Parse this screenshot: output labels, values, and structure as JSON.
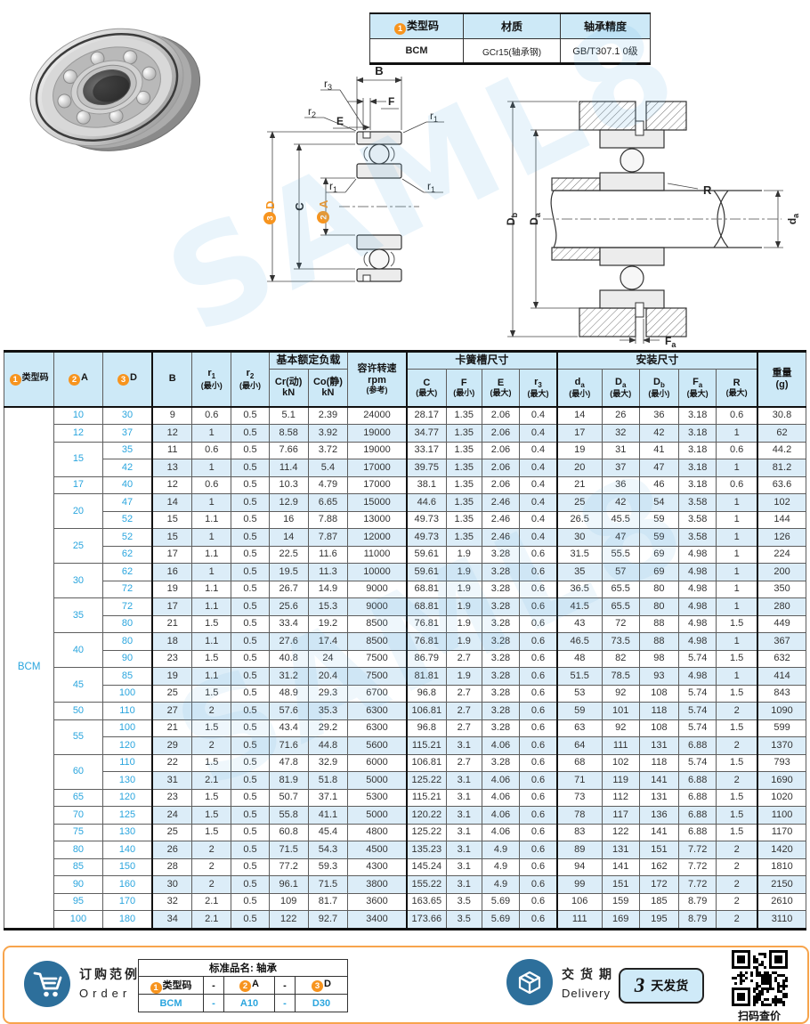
{
  "watermark": "SAML8",
  "info_table": {
    "h1_badge": "1",
    "h1": "类型码",
    "h2": "材质",
    "h3": "轴承精度",
    "v1": "BCM",
    "v2": "GCr15(轴承钢)",
    "v3": "GB/T307.1 0级"
  },
  "diagrams": {
    "b": "B",
    "f": "F",
    "e": "E",
    "r1m": "r",
    "r1s": "1",
    "r2m": "r",
    "r2s": "2",
    "r3m": "r",
    "r3s": "3",
    "d_badge": "3",
    "d": "D",
    "c": "C",
    "a_badge": "2",
    "a": "A",
    "dbm": "D",
    "dbs": "b",
    "dam": "D",
    "das": "a",
    "sham": "d",
    "shas": "a",
    "r": "R",
    "fam": "F",
    "fas": "a"
  },
  "main_table": {
    "type_code": "BCM",
    "headers": {
      "type_badge": "1",
      "type_label": "类型码",
      "a_badge": "2",
      "a_label": "A",
      "d_badge": "3",
      "d_label": "D",
      "b_label": "B",
      "r1": {
        "main": "r",
        "sub": "1",
        "note": "(最小)"
      },
      "r2": {
        "main": "r",
        "sub": "2",
        "note": "(最小)"
      },
      "load_group": "基本额定负载",
      "cr": {
        "main": "Cr(动)",
        "note": "kN"
      },
      "co": {
        "main": "Co(静)",
        "note": "kN"
      },
      "speed": {
        "l1": "容许转速",
        "l2": "rpm",
        "l3": "(参考)"
      },
      "snap_group": "卡簧槽尺寸",
      "c": {
        "main": "C",
        "note": "(最大)"
      },
      "f": {
        "main": "F",
        "note": "(最小)"
      },
      "e": {
        "main": "E",
        "note": "(最大)"
      },
      "r3": {
        "main": "r",
        "sub": "3",
        "note": "(最大)"
      },
      "mount_group": "安装尺寸",
      "da": {
        "main": "d",
        "sub": "a",
        "note": "(最小)"
      },
      "Da": {
        "main": "D",
        "sub": "a",
        "note": "(最大)"
      },
      "Db": {
        "main": "D",
        "sub": "b",
        "note": "(最小)"
      },
      "Fa": {
        "main": "F",
        "sub": "a",
        "note": "(最大)"
      },
      "r": {
        "main": "R",
        "note": "(最大)"
      },
      "weight": {
        "l1": "重量",
        "l2": "(g)"
      }
    },
    "rows": [
      [
        10,
        30,
        9,
        0.6,
        0.5,
        5.1,
        2.39,
        24000,
        28.17,
        1.35,
        2.06,
        0.4,
        14,
        26,
        36,
        3.18,
        0.6,
        30.8
      ],
      [
        12,
        37,
        12,
        1,
        0.5,
        8.58,
        3.92,
        19000,
        34.77,
        1.35,
        2.06,
        0.4,
        17,
        32,
        42,
        3.18,
        1,
        62
      ],
      [
        15,
        35,
        11,
        0.6,
        0.5,
        7.66,
        3.72,
        19000,
        33.17,
        1.35,
        2.06,
        0.4,
        19,
        31,
        41,
        3.18,
        0.6,
        44.2
      ],
      [
        15,
        42,
        13,
        1,
        0.5,
        11.4,
        5.4,
        17000,
        39.75,
        1.35,
        2.06,
        0.4,
        20,
        37,
        47,
        3.18,
        1,
        81.2
      ],
      [
        17,
        40,
        12,
        0.6,
        0.5,
        10.3,
        4.79,
        17000,
        38.1,
        1.35,
        2.06,
        0.4,
        21,
        36,
        46,
        3.18,
        0.6,
        63.6
      ],
      [
        20,
        47,
        14,
        1,
        0.5,
        12.9,
        6.65,
        15000,
        44.6,
        1.35,
        2.46,
        0.4,
        25,
        42,
        54,
        3.58,
        1,
        102
      ],
      [
        20,
        52,
        15,
        1.1,
        0.5,
        16,
        7.88,
        13000,
        49.73,
        1.35,
        2.46,
        0.4,
        26.5,
        45.5,
        59,
        3.58,
        1,
        144
      ],
      [
        25,
        52,
        15,
        1,
        0.5,
        14,
        7.87,
        12000,
        49.73,
        1.35,
        2.46,
        0.4,
        30,
        47,
        59,
        3.58,
        1,
        126
      ],
      [
        25,
        62,
        17,
        1.1,
        0.5,
        22.5,
        11.6,
        11000,
        59.61,
        1.9,
        3.28,
        0.6,
        31.5,
        55.5,
        69,
        4.98,
        1,
        224
      ],
      [
        30,
        62,
        16,
        1,
        0.5,
        19.5,
        11.3,
        10000,
        59.61,
        1.9,
        3.28,
        0.6,
        35,
        57,
        69,
        4.98,
        1,
        200
      ],
      [
        30,
        72,
        19,
        1.1,
        0.5,
        26.7,
        14.9,
        9000,
        68.81,
        1.9,
        3.28,
        0.6,
        36.5,
        65.5,
        80,
        4.98,
        1,
        350
      ],
      [
        35,
        72,
        17,
        1.1,
        0.5,
        25.6,
        15.3,
        9000,
        68.81,
        1.9,
        3.28,
        0.6,
        41.5,
        65.5,
        80,
        4.98,
        1,
        280
      ],
      [
        35,
        80,
        21,
        1.5,
        0.5,
        33.4,
        19.2,
        8500,
        76.81,
        1.9,
        3.28,
        0.6,
        43,
        72,
        88,
        4.98,
        1.5,
        449
      ],
      [
        40,
        80,
        18,
        1.1,
        0.5,
        27.6,
        17.4,
        8500,
        76.81,
        1.9,
        3.28,
        0.6,
        46.5,
        73.5,
        88,
        4.98,
        1,
        367
      ],
      [
        40,
        90,
        23,
        1.5,
        0.5,
        40.8,
        24,
        7500,
        86.79,
        2.7,
        3.28,
        0.6,
        48,
        82,
        98,
        5.74,
        1.5,
        632
      ],
      [
        45,
        85,
        19,
        1.1,
        0.5,
        31.2,
        20.4,
        7500,
        81.81,
        1.9,
        3.28,
        0.6,
        51.5,
        78.5,
        93,
        4.98,
        1,
        414
      ],
      [
        45,
        100,
        25,
        1.5,
        0.5,
        48.9,
        29.3,
        6700,
        96.8,
        2.7,
        3.28,
        0.6,
        53,
        92,
        108,
        5.74,
        1.5,
        843
      ],
      [
        50,
        110,
        27,
        2,
        0.5,
        57.6,
        35.3,
        6300,
        106.81,
        2.7,
        3.28,
        0.6,
        59,
        101,
        118,
        5.74,
        2,
        1090
      ],
      [
        55,
        100,
        21,
        1.5,
        0.5,
        43.4,
        29.2,
        6300,
        96.8,
        2.7,
        3.28,
        0.6,
        63,
        92,
        108,
        5.74,
        1.5,
        599
      ],
      [
        55,
        120,
        29,
        2,
        0.5,
        71.6,
        44.8,
        5600,
        115.21,
        3.1,
        4.06,
        0.6,
        64,
        111,
        131,
        6.88,
        2,
        1370
      ],
      [
        60,
        110,
        22,
        1.5,
        0.5,
        47.8,
        32.9,
        6000,
        106.81,
        2.7,
        3.28,
        0.6,
        68,
        102,
        118,
        5.74,
        1.5,
        793
      ],
      [
        60,
        130,
        31,
        2.1,
        0.5,
        81.9,
        51.8,
        5000,
        125.22,
        3.1,
        4.06,
        0.6,
        71,
        119,
        141,
        6.88,
        2,
        1690
      ],
      [
        65,
        120,
        23,
        1.5,
        0.5,
        50.7,
        37.1,
        5300,
        115.21,
        3.1,
        4.06,
        0.6,
        73,
        112,
        131,
        6.88,
        1.5,
        1020
      ],
      [
        70,
        125,
        24,
        1.5,
        0.5,
        55.8,
        41.1,
        5000,
        120.22,
        3.1,
        4.06,
        0.6,
        78,
        117,
        136,
        6.88,
        1.5,
        1100
      ],
      [
        75,
        130,
        25,
        1.5,
        0.5,
        60.8,
        45.4,
        4800,
        125.22,
        3.1,
        4.06,
        0.6,
        83,
        122,
        141,
        6.88,
        1.5,
        1170
      ],
      [
        80,
        140,
        26,
        2,
        0.5,
        71.5,
        54.3,
        4500,
        135.23,
        3.1,
        4.9,
        0.6,
        89,
        131,
        151,
        7.72,
        2,
        1420
      ],
      [
        85,
        150,
        28,
        2,
        0.5,
        77.2,
        59.3,
        4300,
        145.24,
        3.1,
        4.9,
        0.6,
        94,
        141,
        162,
        7.72,
        2,
        1810
      ],
      [
        90,
        160,
        30,
        2,
        0.5,
        96.1,
        71.5,
        3800,
        155.22,
        3.1,
        4.9,
        0.6,
        99,
        151,
        172,
        7.72,
        2,
        2150
      ],
      [
        95,
        170,
        32,
        2.1,
        0.5,
        109,
        81.7,
        3600,
        163.65,
        3.5,
        5.69,
        0.6,
        106,
        159,
        185,
        8.79,
        2,
        2610
      ],
      [
        100,
        180,
        34,
        2.1,
        0.5,
        122,
        92.7,
        3400,
        173.66,
        3.5,
        5.69,
        0.6,
        111,
        169,
        195,
        8.79,
        2,
        3110
      ]
    ]
  },
  "footer": {
    "order_cn": "订购范例",
    "order_en": "Order",
    "table_title": "标准品名: 轴承",
    "h1_badge": "1",
    "h1": "类型码",
    "dash": "-",
    "h2_badge": "2",
    "h2": "A",
    "h3_badge": "3",
    "h3": "D",
    "v1": "BCM",
    "v2": "A10",
    "v3": "D30",
    "delivery_cn": "交货期",
    "delivery_en": "Delivery",
    "days": "3",
    "days_unit": "天发货",
    "qr_label": "扫码查价"
  }
}
